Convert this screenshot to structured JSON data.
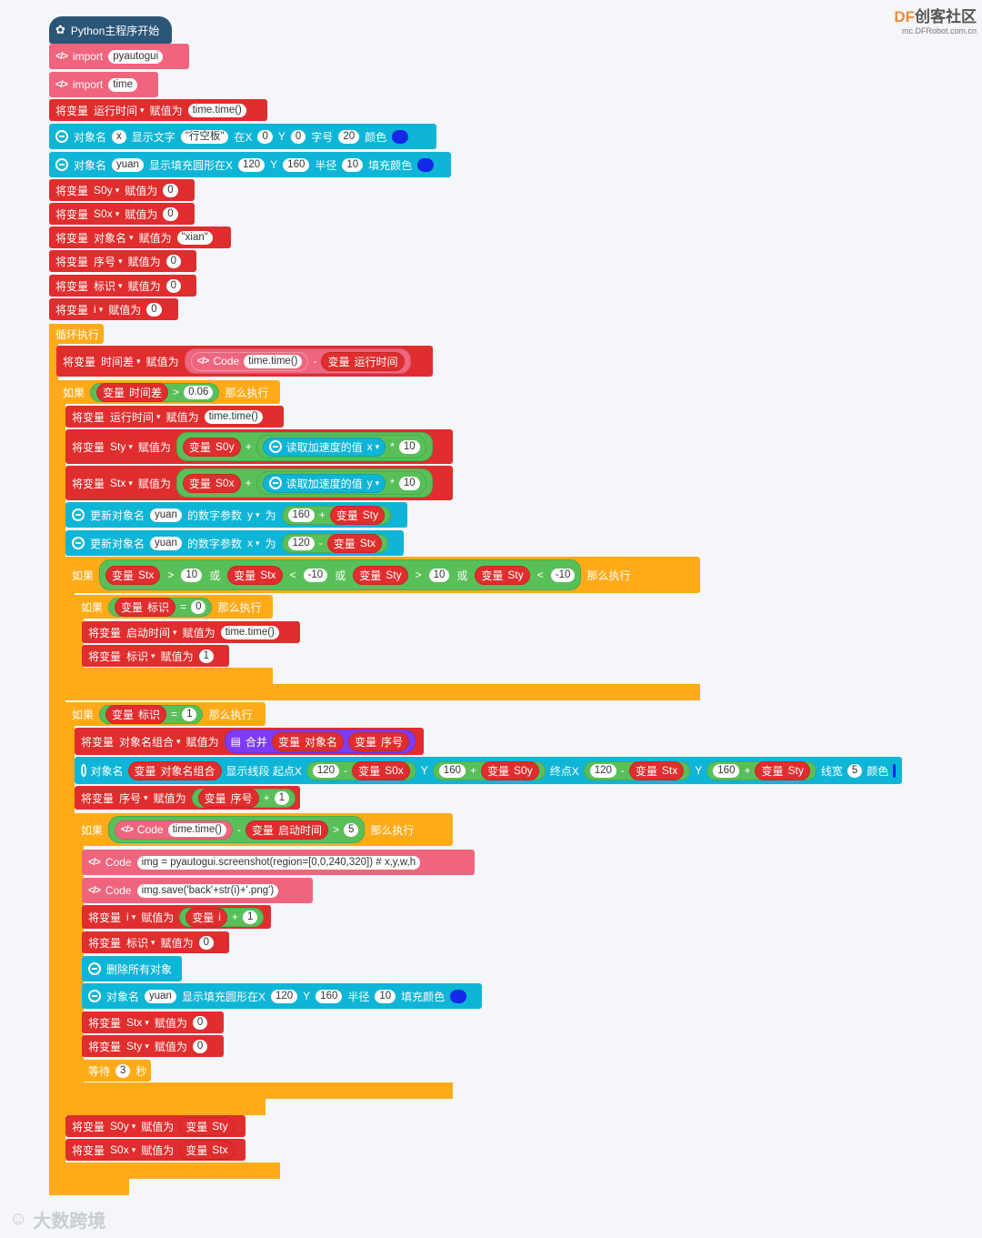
{
  "brand": {
    "logo_df": "DF",
    "logo_cn": "创客社区",
    "site": "mc.DFRobot.com.cn"
  },
  "watermark_text": "大数跨境",
  "colors": {
    "variable_block": "#e02d2d",
    "sprite_block": "#0fb5d6",
    "code_block": "#f0657e",
    "control_block": "#ffab19",
    "logic_chip": "#59c059",
    "list_block": "#7e3cf7",
    "fill_color": "#1428e8"
  },
  "kw": {
    "set_var": "将变量",
    "assign": "赋值为",
    "var": "变量",
    "code": "Code",
    "if": "如果",
    "then": "那么执行",
    "or": "或",
    "obj_name": "对象名",
    "show_text": "显示文字",
    "at_x": "在X",
    "font_size": "字号",
    "color": "颜色",
    "show_circle": "显示填充圆形在X",
    "radius": "半径",
    "fill_color": "填充颜色",
    "read_accel": "读取加速度的值",
    "update_obj": "更新对象名",
    "numeric_param": "的数字参数",
    "as": "为",
    "merge": "合并",
    "show_line": "显示线段 起点X",
    "end_x": "终点X",
    "line_width": "线宽",
    "delete_all": "删除所有对象",
    "wait": "等待",
    "seconds": "秒",
    "Y": "Y",
    "import": "import"
  },
  "blocks": {
    "hat": "Python主程序开始",
    "import1": "pyautogui",
    "import2": "time",
    "set_runtime_var": "运行时间",
    "set_runtime_val": "time.time()",
    "text_obj": "x",
    "text_str": "\"行空板\"",
    "text_x": "0",
    "text_y": "0",
    "text_size": "20",
    "circle_obj": "yuan",
    "circle_x": "120",
    "circle_y": "160",
    "circle_r": "10",
    "s0y": "S0y",
    "s0x": "S0x",
    "zero": "0",
    "objname_var": "对象名",
    "objname_val": "\"xian\"",
    "seq_var": "序号",
    "flag_var": "标识",
    "i_var": "i",
    "loop": "循环执行",
    "timediff_var": "时间差",
    "code_time": "time.time()",
    "minus": "-",
    "cond1_val": "0.06",
    "gt": ">",
    "lt": "<",
    "eq": "=",
    "plus": "+",
    "times": "*",
    "sty": "Sty",
    "stx": "Stx",
    "axis_x": "x",
    "axis_y": "y",
    "ten": "10",
    "neg_ten": "-10",
    "num_160": "160",
    "num_120": "120",
    "num_1": "1",
    "num_5": "5",
    "start_time_var": "启动时间",
    "objname_combo_var": "对象名组合",
    "code_screenshot": "img = pyautogui.screenshot(region=[0,0,240,320]) # x,y,w,h",
    "code_save": "img.save('back'+str(i)+'.png')",
    "wait_val": "3"
  }
}
